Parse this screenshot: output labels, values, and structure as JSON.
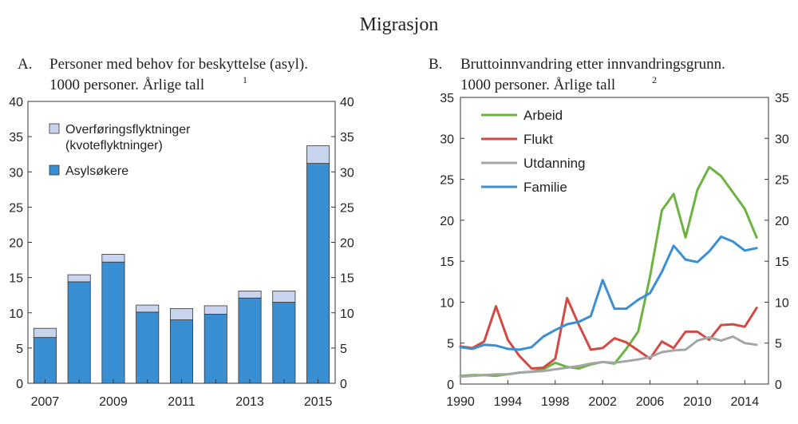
{
  "title": "Migrasjon",
  "chart_data": [
    {
      "panel": "A.",
      "type": "bar",
      "stacked": true,
      "title_line1": "Personer med behov for beskyttelse (asyl).",
      "title_line2": "1000 personer. Årlige tall",
      "footnote": "1",
      "categories": [
        "2007",
        "2008",
        "2009",
        "2010",
        "2011",
        "2012",
        "2013",
        "2014",
        "2015"
      ],
      "x_tick_labels": [
        "2007",
        "2009",
        "2011",
        "2013",
        "2015"
      ],
      "ylim": [
        0,
        40
      ],
      "y_ticks": [
        "0",
        "5",
        "10",
        "15",
        "20",
        "25",
        "30",
        "35",
        "40"
      ],
      "series": [
        {
          "name": "Asylsøkere",
          "color": "#3a8fd3",
          "values": [
            6.5,
            14.4,
            17.2,
            10.1,
            9.0,
            9.8,
            12.1,
            11.5,
            31.2
          ]
        },
        {
          "name": "Overføringsflyktninger (kvoteflyktninger)",
          "color": "#c8d4ee",
          "values": [
            1.3,
            1.0,
            1.1,
            1.0,
            1.6,
            1.2,
            1.0,
            1.6,
            2.5
          ]
        }
      ],
      "legend": {
        "placement": "top-left",
        "items": [
          {
            "line1": "Overføringsflyktninger",
            "line2": "(kvoteflyktninger)",
            "color": "#c8d4ee"
          },
          {
            "line1": "Asylsøkere",
            "line2": "",
            "color": "#3a8fd3"
          }
        ]
      }
    },
    {
      "panel": "B.",
      "type": "line",
      "title_line1": "Bruttoinnvandring etter innvandringsgrunn.",
      "title_line2": "1000 personer. Årlige tall",
      "footnote": "2",
      "x": [
        1990,
        1991,
        1992,
        1993,
        1994,
        1995,
        1996,
        1997,
        1998,
        1999,
        2000,
        2001,
        2002,
        2003,
        2004,
        2005,
        2006,
        2007,
        2008,
        2009,
        2010,
        2011,
        2012,
        2013,
        2014,
        2015
      ],
      "xlim": [
        1990,
        2016
      ],
      "x_ticks": [
        1990,
        1994,
        1998,
        2002,
        2006,
        2010,
        2014
      ],
      "x_tick_labels": [
        "1990",
        "1994",
        "1998",
        "2002",
        "2006",
        "2010",
        "2014"
      ],
      "ylim": [
        0,
        35
      ],
      "y_ticks": [
        "0",
        "5",
        "10",
        "15",
        "20",
        "25",
        "30",
        "35"
      ],
      "series": [
        {
          "name": "Arbeid",
          "color": "#6cb33f",
          "values": [
            1.0,
            1.1,
            1.1,
            1.0,
            1.2,
            1.4,
            1.5,
            1.8,
            2.6,
            2.1,
            1.9,
            2.4,
            2.7,
            2.5,
            4.3,
            6.4,
            13.1,
            21.2,
            23.2,
            17.9,
            23.7,
            26.5,
            25.4,
            23.4,
            21.4,
            17.9
          ]
        },
        {
          "name": "Flukt",
          "color": "#d24a43",
          "values": [
            4.6,
            4.4,
            5.2,
            9.5,
            5.4,
            3.4,
            1.9,
            2.0,
            3.1,
            10.5,
            7.2,
            4.2,
            4.4,
            5.6,
            5.1,
            4.1,
            3.1,
            5.2,
            4.4,
            6.4,
            6.4,
            5.4,
            7.2,
            7.3,
            7.0,
            9.3
          ]
        },
        {
          "name": "Utdanning",
          "color": "#a2a7a5",
          "values": [
            0.9,
            1.0,
            1.1,
            1.2,
            1.2,
            1.4,
            1.5,
            1.6,
            1.8,
            2.0,
            2.2,
            2.5,
            2.7,
            2.6,
            2.8,
            3.0,
            3.3,
            3.9,
            4.1,
            4.2,
            5.3,
            5.7,
            5.3,
            5.8,
            5.0,
            4.8
          ]
        },
        {
          "name": "Familie",
          "color": "#3b8fd2",
          "values": [
            4.5,
            4.3,
            4.8,
            4.7,
            4.3,
            4.2,
            4.5,
            5.8,
            6.6,
            7.3,
            7.6,
            8.3,
            12.7,
            9.2,
            9.2,
            10.3,
            11.1,
            13.7,
            16.9,
            15.2,
            14.9,
            16.2,
            18.0,
            17.4,
            16.3,
            16.6
          ]
        }
      ],
      "legend": {
        "placement": "top-left",
        "items": [
          "Arbeid",
          "Flukt",
          "Utdanning",
          "Familie"
        ]
      }
    }
  ]
}
